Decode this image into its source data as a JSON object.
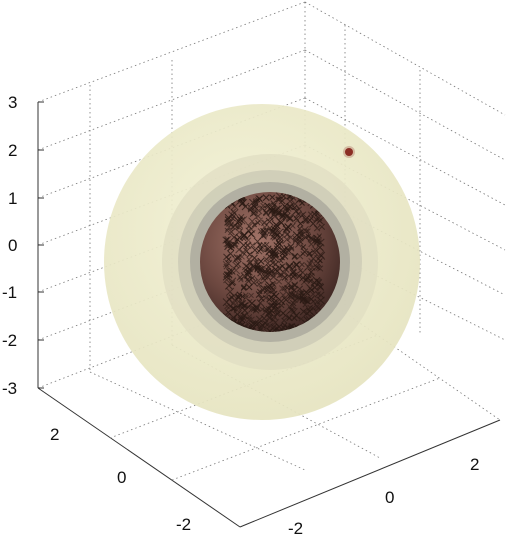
{
  "chart_data": {
    "type": "scatter",
    "subtype": "3d-nested-translucent-spheres",
    "title": "",
    "xlabel": "",
    "ylabel": "",
    "zlabel": "",
    "grid": true,
    "xlim": [
      -3,
      3
    ],
    "ylim": [
      -3,
      3
    ],
    "zlim": [
      -3,
      3
    ],
    "z_ticks": [
      "3",
      "2",
      "1",
      "0",
      "-1",
      "-2",
      "-3"
    ],
    "left_axis_ticks": [
      "2",
      "0",
      "-2"
    ],
    "right_axis_ticks": [
      "2",
      "0",
      "-2"
    ],
    "spheres": [
      {
        "radius": 3.0,
        "color": "#eeedc6"
      },
      {
        "radius": 1.8,
        "color": "#dedcc2"
      },
      {
        "radius": 1.55,
        "color": "#c8c6b6"
      },
      {
        "radius": 1.35,
        "color": "#a9a8a0"
      },
      {
        "radius": 1.15,
        "color": "#7a5650"
      }
    ],
    "cluster_marker": "x",
    "cluster_color": "#2a1a14",
    "outlier_point": {
      "x": 1.3,
      "y": 2.3,
      "z": 2.0,
      "color": "#8b2e24"
    }
  }
}
